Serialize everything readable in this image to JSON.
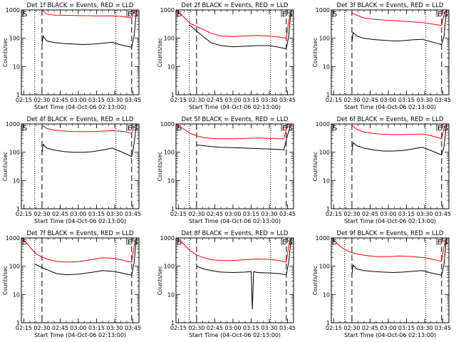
{
  "chart_data": [
    {
      "type": "line",
      "title": "Det 1f BLACK = Events, RED = LLD",
      "xlabel": "Start Time (04-Oct-06 02:13:00)",
      "ylabel": "Counts/sec",
      "x_tick_labels": [
        "02:15",
        "02:30",
        "02:45",
        "03:00",
        "03:15",
        "03:30",
        "03:45"
      ],
      "y_tick_labels": [
        "1",
        "10",
        "100",
        "1000"
      ],
      "xlim": [
        "02:13",
        "03:50"
      ],
      "ylim": [
        1,
        1000
      ],
      "y_scale": "log",
      "markers": {
        "S_left": "02:13",
        "E": "03:40",
        "S_right": "03:48"
      },
      "dotted_lines": [
        "02:24",
        "03:31"
      ],
      "dashed_lines": [
        "02:30",
        "03:44"
      ],
      "series": [
        {
          "color": "#ff0000",
          "x": [
            "02:30",
            "02:34",
            "02:40",
            "02:48",
            "02:56",
            "03:04",
            "03:12",
            "03:20",
            "03:28",
            "03:34",
            "03:40",
            "03:44",
            "03:46",
            "03:48"
          ],
          "y": [
            1000,
            720,
            660,
            650,
            640,
            630,
            620,
            615,
            620,
            600,
            560,
            520,
            900,
            1000
          ]
        },
        {
          "color": "#000000",
          "x": [
            "02:30",
            "02:31",
            "02:34",
            "02:40",
            "02:48",
            "02:56",
            "03:04",
            "03:12",
            "03:20",
            "03:28",
            "03:34",
            "03:40",
            "03:44",
            "03:46",
            "03:48"
          ],
          "y": [
            60,
            120,
            80,
            70,
            65,
            62,
            60,
            62,
            66,
            72,
            60,
            52,
            48,
            120,
            1000
          ]
        }
      ]
    },
    {
      "type": "line",
      "title": "Det 2f BLACK = Events, RED = LLD",
      "xlabel": "Start Time (04-Oct-06 02:13:00)",
      "ylabel": "Counts/sec",
      "x_tick_labels": [
        "02:15",
        "02:30",
        "02:45",
        "03:00",
        "03:15",
        "03:30",
        "03:45"
      ],
      "y_tick_labels": [
        "1",
        "10",
        "100",
        "1000"
      ],
      "xlim": [
        "02:13",
        "03:50"
      ],
      "ylim": [
        1,
        1000
      ],
      "y_scale": "log",
      "markers": {
        "S_left": "02:13",
        "E": "03:40",
        "S_right": "03:48"
      },
      "dotted_lines": [
        "02:24",
        "03:31"
      ],
      "dashed_lines": [
        "02:30",
        "03:44"
      ],
      "series": [
        {
          "color": "#ff0000",
          "x": [
            "02:13",
            "02:17",
            "02:21",
            "02:25",
            "02:30",
            "02:36",
            "02:42",
            "02:50",
            "03:00",
            "03:10",
            "03:20",
            "03:30",
            "03:38",
            "03:44",
            "03:46",
            "03:48"
          ],
          "y": [
            1000,
            720,
            480,
            330,
            260,
            200,
            150,
            120,
            115,
            120,
            125,
            120,
            110,
            100,
            400,
            1000
          ]
        },
        {
          "color": "#000000",
          "x": [
            "02:24",
            "02:30",
            "02:36",
            "02:42",
            "02:50",
            "03:00",
            "03:10",
            "03:20",
            "03:30",
            "03:38",
            "03:44",
            "03:46",
            "03:48"
          ],
          "y": [
            300,
            180,
            110,
            70,
            55,
            50,
            52,
            55,
            55,
            48,
            42,
            120,
            1000
          ]
        }
      ]
    },
    {
      "type": "line",
      "title": "Det 3f BLACK = Events, RED = LLD",
      "xlabel": "Start Time (04-Oct-06 02:13:00)",
      "ylabel": "Counts/sec",
      "x_tick_labels": [
        "02:15",
        "02:30",
        "02:45",
        "03:00",
        "03:15",
        "03:30",
        "03:45"
      ],
      "y_tick_labels": [
        "1",
        "10",
        "100",
        "1000"
      ],
      "xlim": [
        "02:13",
        "03:50"
      ],
      "ylim": [
        1,
        1000
      ],
      "y_scale": "log",
      "markers": {
        "S_left": "02:13",
        "E": "03:40",
        "S_right": "03:48"
      },
      "dotted_lines": [
        "02:24",
        "03:31"
      ],
      "dashed_lines": [
        "02:30",
        "03:44"
      ],
      "series": [
        {
          "color": "#ff0000",
          "x": [
            "02:30",
            "02:34",
            "02:40",
            "02:48",
            "02:56",
            "03:04",
            "03:12",
            "03:20",
            "03:28",
            "03:34",
            "03:40",
            "03:44",
            "03:46",
            "03:48"
          ],
          "y": [
            800,
            650,
            520,
            470,
            440,
            420,
            400,
            380,
            360,
            330,
            300,
            280,
            700,
            1000
          ]
        },
        {
          "color": "#000000",
          "x": [
            "02:30",
            "02:31",
            "02:34",
            "02:40",
            "02:48",
            "02:56",
            "03:04",
            "03:12",
            "03:20",
            "03:28",
            "03:34",
            "03:40",
            "03:44",
            "03:46",
            "03:48"
          ],
          "y": [
            70,
            160,
            120,
            100,
            90,
            85,
            80,
            82,
            88,
            92,
            78,
            66,
            60,
            120,
            1000
          ]
        }
      ]
    },
    {
      "type": "line",
      "title": "Det 4f BLACK = Events, RED = LLD",
      "xlabel": "Start Time (04-Oct-06 02:13:00)",
      "ylabel": "Counts/sec",
      "x_tick_labels": [
        "02:15",
        "02:30",
        "02:45",
        "03:00",
        "03:15",
        "03:30",
        "03:45"
      ],
      "y_tick_labels": [
        "1",
        "10",
        "100",
        "1000"
      ],
      "xlim": [
        "02:13",
        "03:50"
      ],
      "ylim": [
        1,
        1000
      ],
      "y_scale": "log",
      "markers": {
        "S_left": "02:13",
        "E": "03:40",
        "S_right": "03:48"
      },
      "dotted_lines": [
        "02:24",
        "03:31"
      ],
      "dashed_lines": [
        "02:30",
        "03:44"
      ],
      "series": [
        {
          "color": "#ff0000",
          "x": [
            "02:30",
            "02:34",
            "02:40",
            "02:48",
            "02:56",
            "03:04",
            "03:12",
            "03:20",
            "03:28",
            "03:34",
            "03:40",
            "03:44",
            "03:46",
            "03:48"
          ],
          "y": [
            900,
            700,
            600,
            560,
            540,
            530,
            540,
            560,
            580,
            560,
            520,
            470,
            800,
            1000
          ]
        },
        {
          "color": "#000000",
          "x": [
            "02:30",
            "02:31",
            "02:34",
            "02:40",
            "02:48",
            "02:56",
            "03:04",
            "03:12",
            "03:20",
            "03:28",
            "03:34",
            "03:40",
            "03:44",
            "03:46",
            "03:48"
          ],
          "y": [
            90,
            190,
            140,
            120,
            105,
            100,
            100,
            105,
            120,
            140,
            110,
            85,
            70,
            200,
            1000
          ]
        }
      ]
    },
    {
      "type": "line",
      "title": "Det 5f BLACK = Events, RED = LLD",
      "xlabel": "Start Time (04-Oct-06 02:13:00)",
      "ylabel": "Counts/sec",
      "x_tick_labels": [
        "02:15",
        "02:30",
        "02:45",
        "03:00",
        "03:15",
        "03:30",
        "03:45"
      ],
      "y_tick_labels": [
        "1",
        "10",
        "100",
        "1000"
      ],
      "xlim": [
        "02:13",
        "03:50"
      ],
      "ylim": [
        1,
        1000
      ],
      "y_scale": "log",
      "markers": {
        "S_left": "02:13",
        "E": "03:40",
        "S_right": "03:48"
      },
      "dotted_lines": [
        "02:24",
        "03:31"
      ],
      "dashed_lines": [
        "02:30",
        "03:44"
      ],
      "series": [
        {
          "color": "#ff0000",
          "x": [
            "02:13",
            "02:17",
            "02:21",
            "02:25",
            "02:30",
            "02:36",
            "02:42",
            "02:50",
            "03:00",
            "03:10",
            "03:20",
            "03:30",
            "03:38",
            "03:42",
            "03:45",
            "03:48"
          ],
          "y": [
            1000,
            780,
            600,
            460,
            380,
            330,
            310,
            300,
            300,
            310,
            320,
            310,
            300,
            300,
            900,
            1000
          ]
        },
        {
          "color": "#000000",
          "x": [
            "02:30",
            "02:36",
            "02:42",
            "02:50",
            "03:00",
            "03:10",
            "03:20",
            "03:30",
            "03:38",
            "03:42",
            "03:45",
            "03:48"
          ],
          "y": [
            180,
            170,
            160,
            150,
            145,
            140,
            135,
            130,
            125,
            120,
            400,
            1000
          ]
        }
      ]
    },
    {
      "type": "line",
      "title": "Det 6f BLACK = Events, RED = LLD",
      "xlabel": "Start Time (04-Oct-06 02:13:00)",
      "ylabel": "Counts/sec",
      "x_tick_labels": [
        "02:15",
        "02:30",
        "02:45",
        "03:00",
        "03:15",
        "03:30",
        "03:45"
      ],
      "y_tick_labels": [
        "1",
        "10",
        "100",
        "1000"
      ],
      "xlim": [
        "02:13",
        "03:50"
      ],
      "ylim": [
        1,
        1000
      ],
      "y_scale": "log",
      "markers": {
        "S_left": "02:13",
        "E": "03:40",
        "S_right": "03:48"
      },
      "dotted_lines": [
        "02:24",
        "03:31"
      ],
      "dashed_lines": [
        "02:30",
        "03:44"
      ],
      "series": [
        {
          "color": "#ff0000",
          "x": [
            "02:30",
            "02:34",
            "02:40",
            "02:48",
            "02:56",
            "03:04",
            "03:12",
            "03:20",
            "03:28",
            "03:34",
            "03:40",
            "03:44",
            "03:46",
            "03:48"
          ],
          "y": [
            900,
            650,
            520,
            460,
            430,
            420,
            420,
            430,
            440,
            400,
            340,
            300,
            700,
            1000
          ]
        },
        {
          "color": "#000000",
          "x": [
            "02:30",
            "02:31",
            "02:34",
            "02:40",
            "02:48",
            "02:56",
            "03:04",
            "03:12",
            "03:20",
            "03:28",
            "03:34",
            "03:40",
            "03:44",
            "03:46",
            "03:48"
          ],
          "y": [
            100,
            220,
            170,
            140,
            120,
            110,
            110,
            115,
            130,
            150,
            120,
            95,
            80,
            160,
            1000
          ]
        }
      ]
    },
    {
      "type": "line",
      "title": "Det 7f BLACK = Events, RED = LLD",
      "xlabel": "Start Time (04-Oct-06 02:13:00)",
      "ylabel": "Counts/sec",
      "x_tick_labels": [
        "02:15",
        "02:30",
        "02:45",
        "03:00",
        "03:15",
        "03:30",
        "03:45"
      ],
      "y_tick_labels": [
        "1",
        "10",
        "100",
        "1000"
      ],
      "xlim": [
        "02:13",
        "03:50"
      ],
      "ylim": [
        1,
        1000
      ],
      "y_scale": "log",
      "markers": {
        "S_left": "02:13",
        "E": "03:40",
        "S_right": "03:48"
      },
      "dotted_lines": [
        "02:24",
        "03:31"
      ],
      "dashed_lines": [
        "02:30",
        "03:44"
      ],
      "series": [
        {
          "color": "#ff0000",
          "x": [
            "02:13",
            "02:17",
            "02:21",
            "02:25",
            "02:30",
            "02:36",
            "02:42",
            "02:50",
            "03:00",
            "03:10",
            "03:20",
            "03:30",
            "03:38",
            "03:44",
            "03:46",
            "03:48"
          ],
          "y": [
            1000,
            700,
            420,
            280,
            210,
            170,
            150,
            140,
            145,
            170,
            200,
            190,
            160,
            140,
            500,
            1000
          ]
        },
        {
          "color": "#000000",
          "x": [
            "02:24",
            "02:30",
            "02:36",
            "02:42",
            "02:50",
            "03:00",
            "03:10",
            "03:20",
            "03:30",
            "03:38",
            "03:44",
            "03:46",
            "03:48"
          ],
          "y": [
            120,
            90,
            70,
            55,
            50,
            52,
            60,
            70,
            65,
            55,
            48,
            130,
            1000
          ]
        }
      ]
    },
    {
      "type": "line",
      "title": "Det 8f BLACK = Events, RED = LLD",
      "xlabel": "Start Time (04-Oct-06 02:13:00)",
      "ylabel": "Counts/sec",
      "x_tick_labels": [
        "02:15",
        "02:30",
        "02:45",
        "03:00",
        "03:15",
        "03:30",
        "03:45"
      ],
      "y_tick_labels": [
        "1",
        "10",
        "100",
        "1000"
      ],
      "xlim": [
        "02:13",
        "03:50"
      ],
      "ylim": [
        1,
        1000
      ],
      "y_scale": "log",
      "markers": {
        "S_left": "02:13",
        "E": "03:40",
        "S_right": "03:48"
      },
      "dotted_lines": [
        "02:24",
        "03:31"
      ],
      "dashed_lines": [
        "02:30",
        "03:44"
      ],
      "series": [
        {
          "color": "#ff0000",
          "x": [
            "02:13",
            "02:17",
            "02:21",
            "02:25",
            "02:30",
            "02:36",
            "02:42",
            "02:50",
            "03:00",
            "03:10",
            "03:20",
            "03:30",
            "03:38",
            "03:44",
            "03:46",
            "03:48"
          ],
          "y": [
            1000,
            780,
            520,
            350,
            250,
            200,
            170,
            160,
            160,
            170,
            180,
            175,
            160,
            140,
            500,
            1000
          ]
        },
        {
          "color": "#000000",
          "x": [
            "02:30",
            "02:36",
            "02:42",
            "02:50",
            "03:00",
            "03:10",
            "03:15",
            "03:16",
            "03:17",
            "03:20",
            "03:30",
            "03:38",
            "03:44",
            "03:46",
            "03:48"
          ],
          "y": [
            100,
            80,
            70,
            62,
            60,
            62,
            65,
            3,
            65,
            60,
            58,
            55,
            50,
            140,
            1000
          ]
        }
      ]
    },
    {
      "type": "line",
      "title": "Det 9f BLACK = Events, RED = LLD",
      "xlabel": "Start Time (04-Oct-06 02:13:00)",
      "ylabel": "Counts/sec",
      "x_tick_labels": [
        "02:15",
        "02:30",
        "02:45",
        "03:00",
        "03:15",
        "03:30",
        "03:45"
      ],
      "y_tick_labels": [
        "1",
        "10",
        "100",
        "1000"
      ],
      "xlim": [
        "02:13",
        "03:50"
      ],
      "ylim": [
        1,
        1000
      ],
      "y_scale": "log",
      "markers": {
        "S_left": "02:13",
        "E": "03:40",
        "S_right": "03:48"
      },
      "dotted_lines": [
        "02:24",
        "03:31"
      ],
      "dashed_lines": [
        "02:30",
        "03:44"
      ],
      "series": [
        {
          "color": "#ff0000",
          "x": [
            "02:13",
            "02:17",
            "02:21",
            "02:25",
            "02:30",
            "02:36",
            "02:42",
            "02:50",
            "03:00",
            "03:10",
            "03:20",
            "03:30",
            "03:38",
            "03:44",
            "03:46",
            "03:48"
          ],
          "y": [
            1000,
            700,
            480,
            370,
            300,
            260,
            240,
            220,
            220,
            230,
            220,
            200,
            170,
            150,
            500,
            1000
          ]
        },
        {
          "color": "#000000",
          "x": [
            "02:30",
            "02:31",
            "02:34",
            "02:40",
            "02:48",
            "02:56",
            "03:04",
            "03:12",
            "03:20",
            "03:28",
            "03:34",
            "03:40",
            "03:44",
            "03:46",
            "03:48"
          ],
          "y": [
            50,
            110,
            80,
            70,
            65,
            62,
            60,
            62,
            66,
            70,
            60,
            52,
            48,
            120,
            1000
          ]
        }
      ]
    }
  ]
}
